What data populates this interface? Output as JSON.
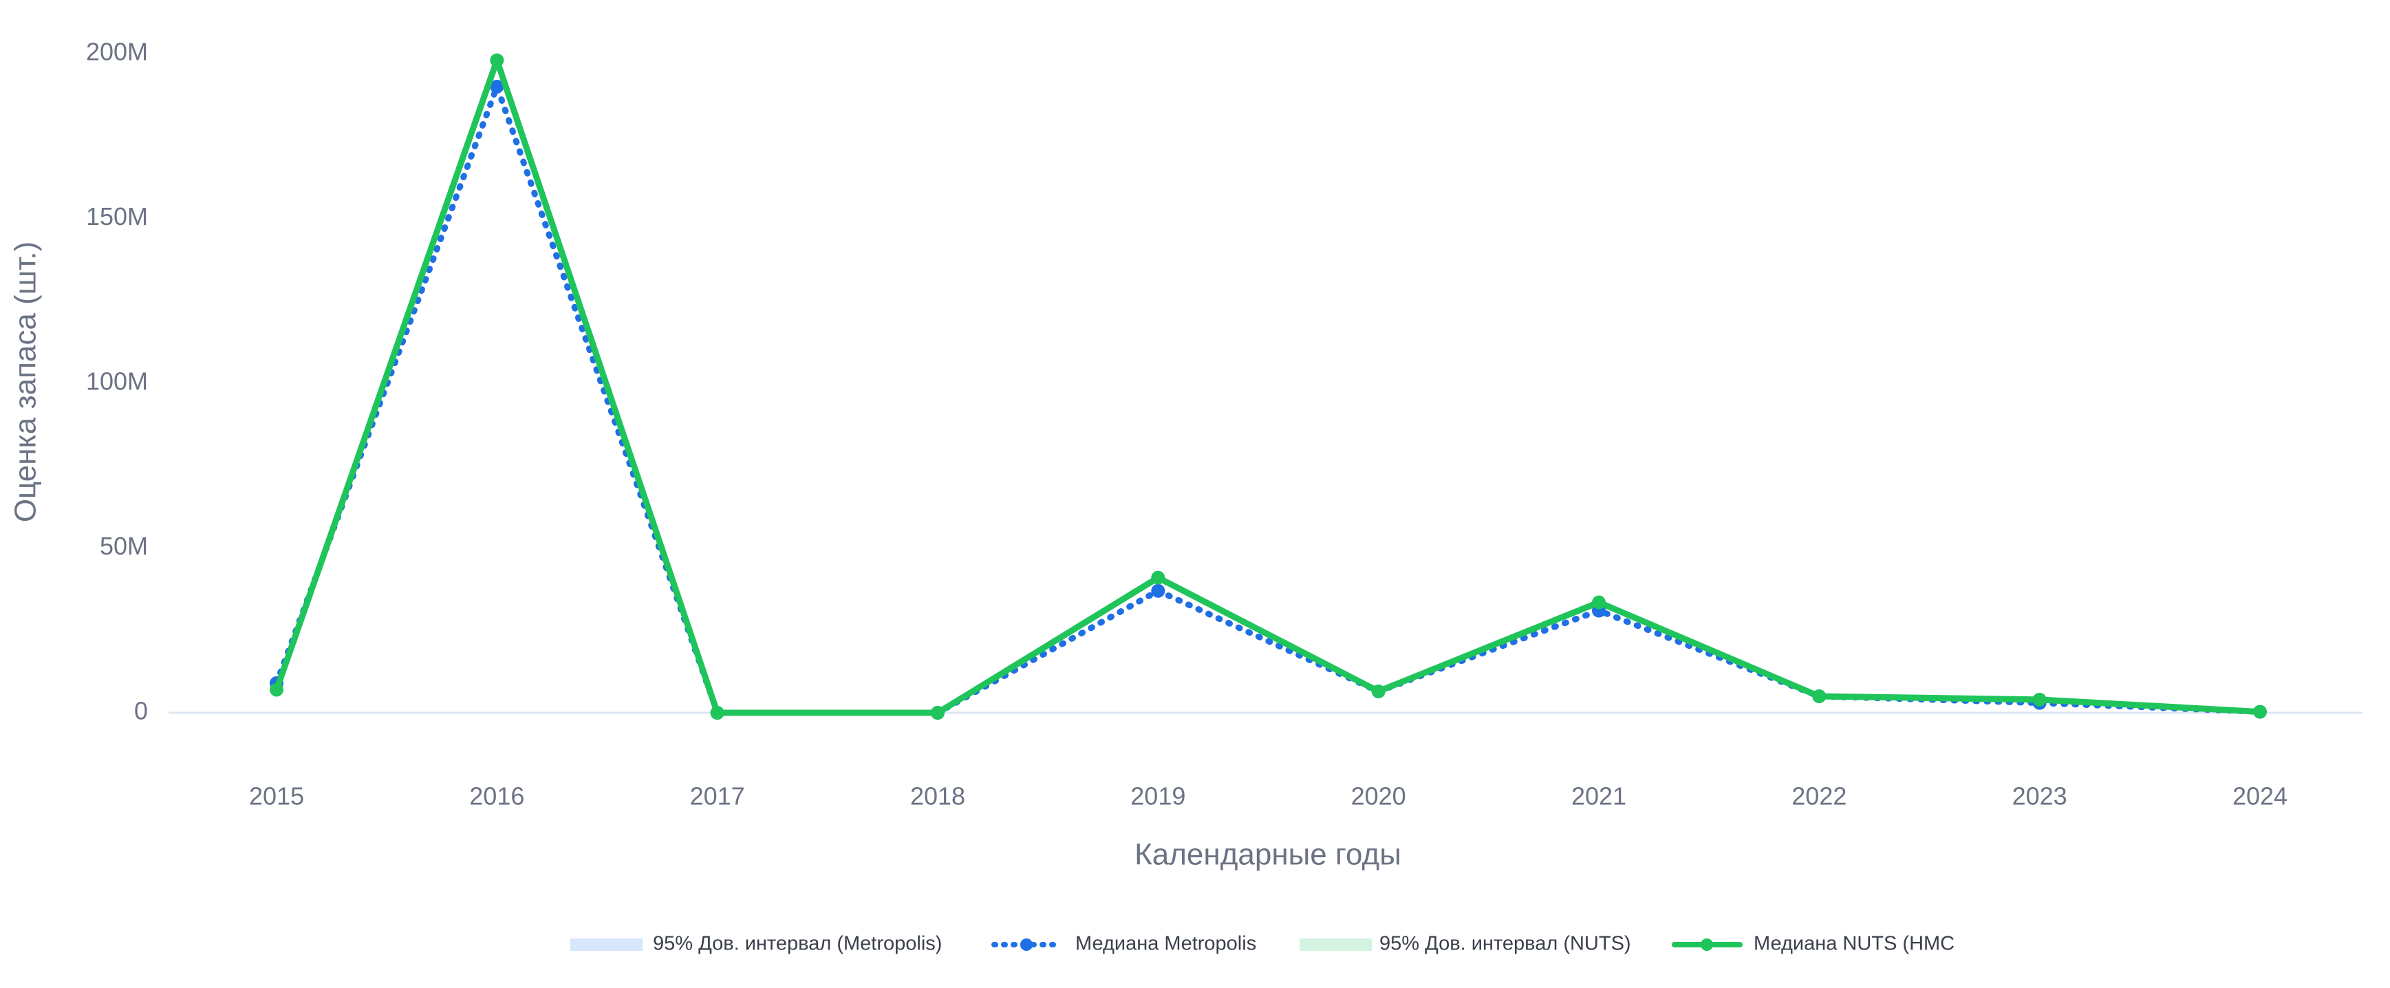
{
  "chart_data": {
    "type": "line",
    "x_label": "Календарные годы",
    "y_label": "Оценка запаса (шт.)",
    "categories": [
      "2015",
      "2016",
      "2017",
      "2018",
      "2019",
      "2020",
      "2021",
      "2022",
      "2023",
      "2024"
    ],
    "ylim": [
      0,
      200000000
    ],
    "yticks": [
      0,
      {
        "value": 50000000,
        "label": "50M"
      },
      {
        "value": 100000000,
        "label": "100M"
      },
      {
        "value": 150000000,
        "label": "150M"
      },
      {
        "value": 200000000,
        "label": "200M"
      }
    ],
    "bands": [
      {
        "name": "95% Дов. интервал (Metropolis)",
        "color": "#d6e6fb"
      },
      {
        "name": "95% Дов. интервал (NUTS)",
        "color": "#d3f2df"
      }
    ],
    "series": [
      {
        "name": "Медиана Metropolis",
        "color": "#1f6fe5",
        "dash": "dotted",
        "values": [
          9000000,
          190000000,
          0,
          0,
          37000000,
          6500000,
          31000000,
          5000000,
          3000000,
          300000
        ]
      },
      {
        "name": "Медиана NUTS (HMC",
        "color": "#1fc45a",
        "dash": "solid",
        "values": [
          7000000,
          198000000,
          0,
          0,
          41000000,
          6500000,
          33500000,
          5000000,
          4000000,
          300000
        ]
      }
    ]
  }
}
